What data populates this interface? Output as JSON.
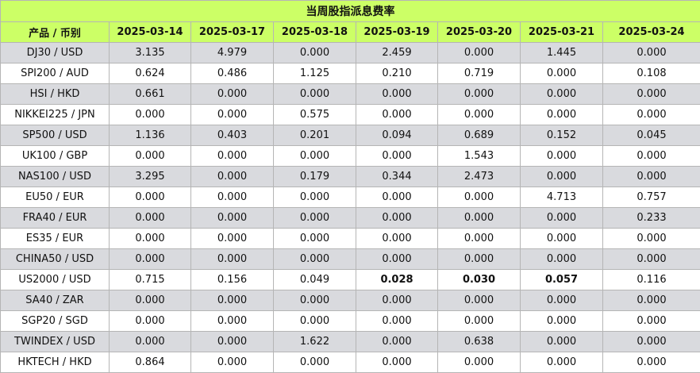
{
  "title": "当周股指派息费率",
  "columns": [
    "产品 / 币别",
    "2025-03-14",
    "2025-03-17",
    "2025-03-18",
    "2025-03-19",
    "2025-03-20",
    "2025-03-21",
    "2025-03-24"
  ],
  "rows": [
    {
      "product": "DJ30 / USD",
      "values": [
        "3.135",
        "4.979",
        "0.000",
        "2.459",
        "0.000",
        "1.445",
        "0.000"
      ],
      "bold": []
    },
    {
      "product": "SPI200 / AUD",
      "values": [
        "0.624",
        "0.486",
        "1.125",
        "0.210",
        "0.719",
        "0.000",
        "0.108"
      ],
      "bold": []
    },
    {
      "product": "HSI / HKD",
      "values": [
        "0.661",
        "0.000",
        "0.000",
        "0.000",
        "0.000",
        "0.000",
        "0.000"
      ],
      "bold": []
    },
    {
      "product": "NIKKEI225 / JPN",
      "values": [
        "0.000",
        "0.000",
        "0.575",
        "0.000",
        "0.000",
        "0.000",
        "0.000"
      ],
      "bold": []
    },
    {
      "product": "SP500 / USD",
      "values": [
        "1.136",
        "0.403",
        "0.201",
        "0.094",
        "0.689",
        "0.152",
        "0.045"
      ],
      "bold": []
    },
    {
      "product": "UK100 / GBP",
      "values": [
        "0.000",
        "0.000",
        "0.000",
        "0.000",
        "1.543",
        "0.000",
        "0.000"
      ],
      "bold": []
    },
    {
      "product": "NAS100 / USD",
      "values": [
        "3.295",
        "0.000",
        "0.179",
        "0.344",
        "2.473",
        "0.000",
        "0.000"
      ],
      "bold": []
    },
    {
      "product": "EU50 / EUR",
      "values": [
        "0.000",
        "0.000",
        "0.000",
        "0.000",
        "0.000",
        "4.713",
        "0.757"
      ],
      "bold": []
    },
    {
      "product": "FRA40 / EUR",
      "values": [
        "0.000",
        "0.000",
        "0.000",
        "0.000",
        "0.000",
        "0.000",
        "0.233"
      ],
      "bold": []
    },
    {
      "product": "ES35 / EUR",
      "values": [
        "0.000",
        "0.000",
        "0.000",
        "0.000",
        "0.000",
        "0.000",
        "0.000"
      ],
      "bold": []
    },
    {
      "product": "CHINA50 / USD",
      "values": [
        "0.000",
        "0.000",
        "0.000",
        "0.000",
        "0.000",
        "0.000",
        "0.000"
      ],
      "bold": []
    },
    {
      "product": "US2000 / USD",
      "values": [
        "0.715",
        "0.156",
        "0.049",
        "0.028",
        "0.030",
        "0.057",
        "0.116"
      ],
      "bold": [
        3,
        4,
        5
      ]
    },
    {
      "product": "SA40 / ZAR",
      "values": [
        "0.000",
        "0.000",
        "0.000",
        "0.000",
        "0.000",
        "0.000",
        "0.000"
      ],
      "bold": []
    },
    {
      "product": "SGP20 / SGD",
      "values": [
        "0.000",
        "0.000",
        "0.000",
        "0.000",
        "0.000",
        "0.000",
        "0.000"
      ],
      "bold": []
    },
    {
      "product": "TWINDEX / USD",
      "values": [
        "0.000",
        "0.000",
        "1.622",
        "0.000",
        "0.638",
        "0.000",
        "0.000"
      ],
      "bold": []
    },
    {
      "product": "HKTECH / HKD",
      "values": [
        "0.864",
        "0.000",
        "0.000",
        "0.000",
        "0.000",
        "0.000",
        "0.000"
      ],
      "bold": []
    }
  ]
}
